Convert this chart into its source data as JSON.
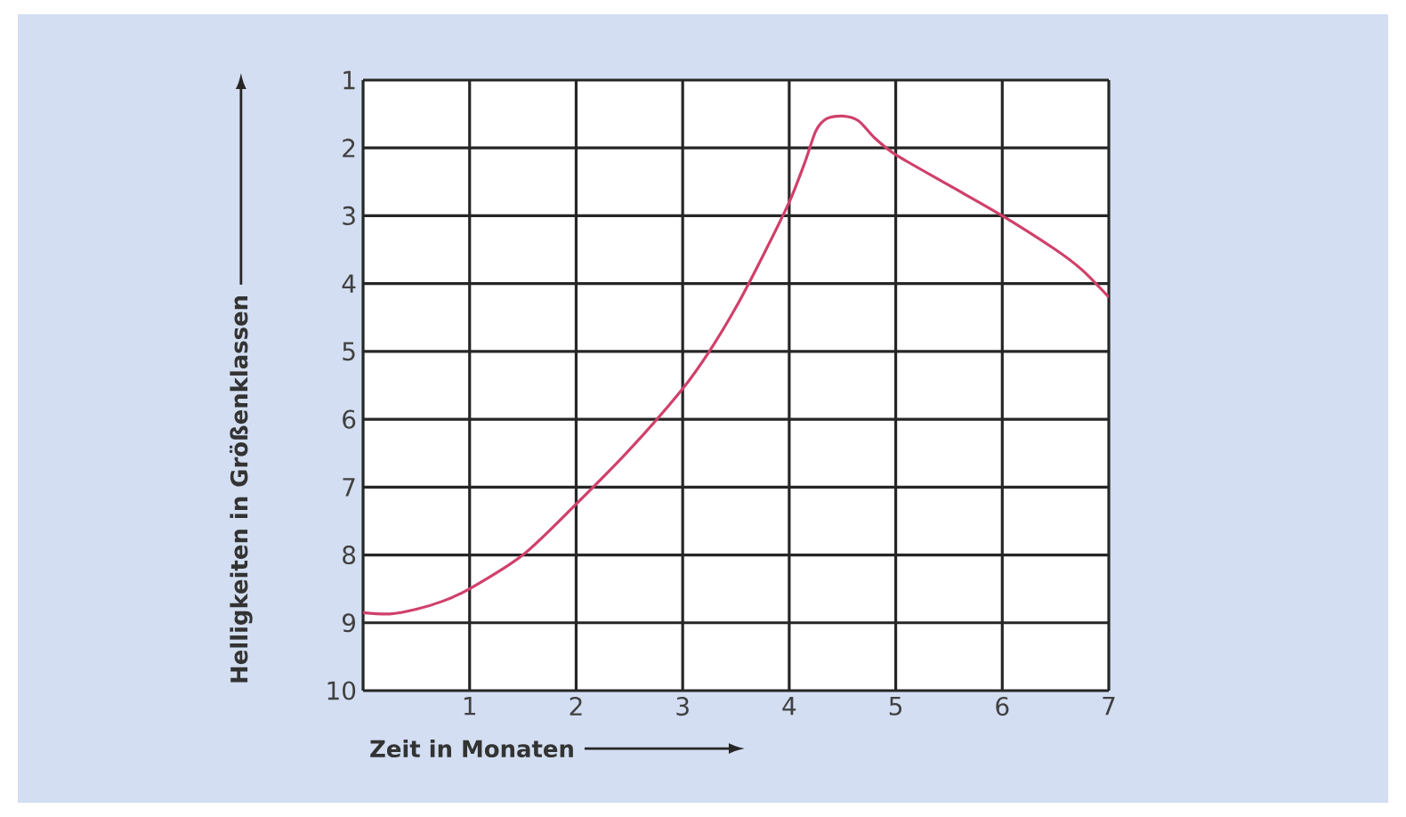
{
  "chart_data": {
    "type": "line",
    "xlabel": "Zeit in Monaten",
    "ylabel": "Helligkeiten in Größenklassen",
    "x": [
      0,
      0.25,
      0.5,
      0.75,
      1,
      1.5,
      2,
      2.5,
      3,
      3.25,
      3.5,
      3.75,
      4,
      4.15,
      4.25,
      4.35,
      4.5,
      4.65,
      4.8,
      5,
      5.5,
      6,
      6.5,
      6.75,
      7
    ],
    "series": [
      {
        "color": "#d0406a",
        "values": [
          8.85,
          8.87,
          8.8,
          8.68,
          8.5,
          8.0,
          7.25,
          6.45,
          5.55,
          5.0,
          4.35,
          3.6,
          2.8,
          2.2,
          1.75,
          1.57,
          1.53,
          1.6,
          1.85,
          2.1,
          2.55,
          3.0,
          3.5,
          3.8,
          4.2
        ]
      }
    ],
    "xlim": [
      0,
      7
    ],
    "ylim": [
      10,
      1
    ],
    "xticks": [
      {
        "value": 0,
        "label": null
      },
      1,
      2,
      3,
      4,
      5,
      6,
      7
    ],
    "yticks": [
      1,
      2,
      3,
      4,
      5,
      6,
      7,
      8,
      9,
      10
    ],
    "grid": true,
    "marker": "none",
    "line_style": "solid"
  }
}
